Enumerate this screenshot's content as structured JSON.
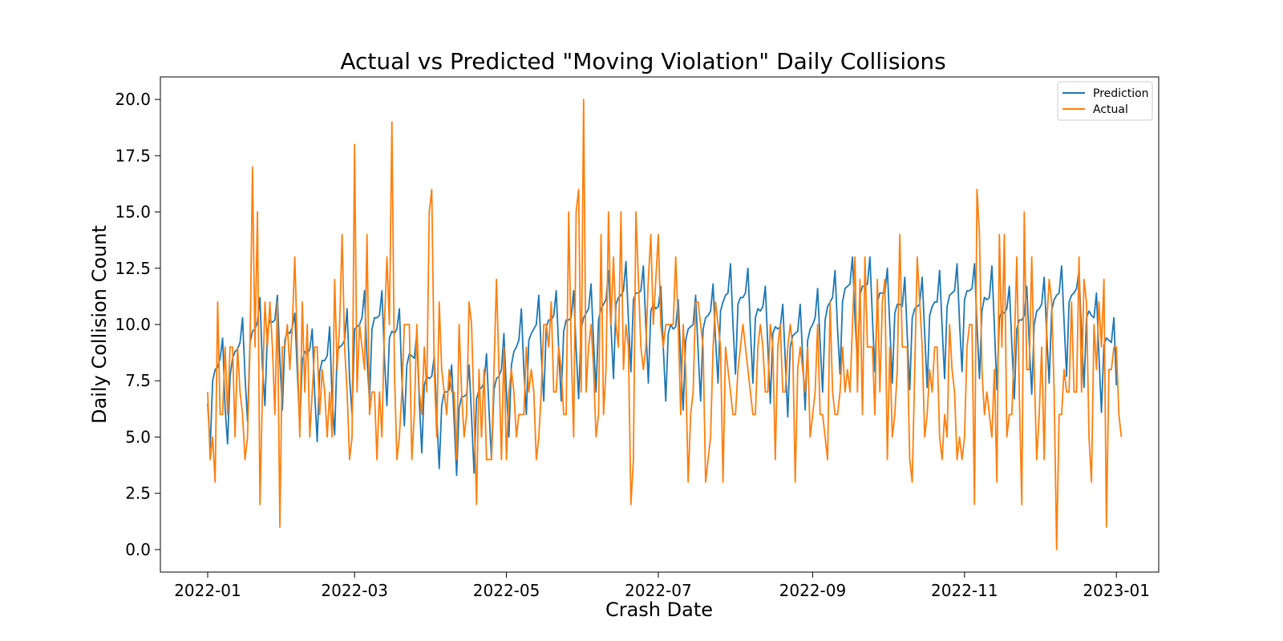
{
  "chart_data": {
    "type": "line",
    "title": "Actual vs Predicted \"Moving Violation\" Daily Collisions",
    "xlabel": "Crash Date",
    "ylabel": "Daily Collision Count",
    "x_start": "2022-01-01",
    "x_end": "2022-12-31",
    "xlim": [
      "2021-12-13",
      "2023-01-18"
    ],
    "ylim": [
      -1.0,
      21.0
    ],
    "x_ticks": [
      "2022-01",
      "2022-03",
      "2022-05",
      "2022-07",
      "2022-09",
      "2022-11",
      "2023-01"
    ],
    "y_ticks": [
      "0.0",
      "2.5",
      "5.0",
      "7.5",
      "10.0",
      "12.5",
      "15.0",
      "17.5",
      "20.0"
    ],
    "grid": false,
    "legend_position": "top-right",
    "series": [
      {
        "name": "Prediction",
        "color": "#1f77b4",
        "values": [
          6.5,
          4.5,
          7.5,
          8.0,
          8.1,
          8.5,
          9.4,
          6.3,
          4.7,
          7.7,
          8.5,
          8.8,
          8.9,
          9.2,
          10.3,
          7.7,
          5.7,
          9.2,
          9.7,
          9.8,
          10.1,
          11.2,
          8.1,
          6.4,
          9.7,
          10.2,
          10.1,
          10.2,
          11.3,
          8.4,
          6.2,
          9.3,
          9.7,
          9.6,
          9.9,
          10.5,
          7.9,
          5.5,
          8.4,
          8.8,
          8.7,
          8.9,
          9.8,
          6.9,
          4.8,
          7.9,
          8.4,
          8.4,
          8.6,
          9.9,
          6.6,
          5.1,
          8.8,
          9.0,
          9.1,
          9.3,
          10.7,
          7.6,
          6.0,
          9.8,
          9.9,
          10.0,
          10.3,
          11.5,
          8.5,
          6.6,
          9.8,
          10.3,
          10.3,
          10.4,
          11.5,
          8.5,
          6.4,
          9.4,
          9.7,
          9.6,
          9.8,
          10.7,
          7.6,
          5.5,
          8.2,
          8.7,
          8.6,
          8.5,
          9.6,
          6.6,
          4.3,
          7.3,
          7.7,
          7.6,
          7.7,
          8.6,
          6.0,
          3.6,
          6.4,
          7.0,
          7.0,
          7.1,
          8.2,
          5.7,
          3.3,
          6.3,
          6.8,
          6.8,
          6.9,
          8.2,
          5.9,
          3.4,
          6.7,
          7.1,
          7.2,
          7.4,
          8.7,
          6.2,
          4.0,
          7.1,
          7.6,
          7.7,
          8.0,
          9.6,
          7.0,
          5.0,
          8.2,
          8.8,
          9.0,
          9.3,
          10.7,
          8.0,
          6.0,
          9.3,
          9.6,
          9.8,
          10.0,
          11.3,
          8.7,
          6.6,
          9.9,
          10.2,
          10.2,
          10.4,
          11.5,
          8.9,
          6.6,
          9.7,
          10.2,
          10.2,
          10.3,
          11.5,
          8.9,
          6.7,
          9.8,
          10.3,
          10.5,
          10.7,
          11.8,
          9.2,
          7.0,
          10.2,
          10.7,
          10.9,
          11.1,
          12.4,
          9.9,
          7.6,
          10.9,
          11.2,
          11.3,
          11.5,
          12.8,
          10.2,
          7.9,
          11.1,
          11.4,
          11.4,
          11.5,
          12.6,
          9.9,
          7.4,
          10.6,
          10.9,
          10.7,
          10.8,
          11.7,
          9.0,
          6.6,
          9.6,
          10.0,
          9.8,
          9.9,
          11.1,
          8.5,
          6.2,
          9.3,
          9.8,
          9.9,
          10.0,
          11.3,
          8.8,
          6.6,
          9.8,
          10.3,
          10.4,
          10.6,
          11.8,
          9.3,
          7.4,
          10.6,
          11.0,
          11.3,
          11.4,
          12.7,
          10.0,
          7.8,
          10.9,
          11.2,
          11.2,
          11.4,
          12.5,
          9.8,
          7.4,
          10.3,
          10.7,
          10.6,
          10.8,
          11.7,
          9.0,
          6.5,
          9.6,
          9.9,
          9.8,
          9.9,
          10.9,
          8.4,
          5.9,
          9.0,
          9.5,
          9.6,
          9.7,
          10.9,
          8.5,
          6.2,
          9.3,
          9.8,
          10.0,
          10.3,
          11.6,
          9.2,
          7.0,
          10.2,
          10.8,
          11.0,
          11.2,
          12.4,
          9.8,
          7.8,
          11.0,
          11.6,
          11.7,
          11.8,
          13.0,
          10.3,
          8.2,
          11.3,
          11.7,
          11.7,
          11.8,
          13.0,
          10.3,
          7.9,
          11.0,
          11.4,
          11.4,
          11.4,
          12.5,
          9.9,
          7.4,
          10.5,
          10.9,
          10.9,
          10.8,
          12.1,
          9.5,
          7.1,
          10.3,
          10.7,
          10.8,
          10.9,
          12.1,
          9.6,
          7.2,
          10.4,
          10.8,
          11.0,
          11.0,
          12.4,
          9.9,
          7.6,
          10.8,
          11.3,
          11.4,
          11.5,
          12.7,
          10.1,
          7.9,
          11.1,
          11.5,
          11.5,
          11.6,
          12.7,
          10.0,
          7.6,
          10.6,
          11.2,
          11.1,
          11.2,
          12.6,
          9.9,
          7.1,
          10.3,
          10.6,
          10.5,
          10.7,
          11.7,
          9.1,
          6.7,
          9.8,
          10.2,
          10.2,
          10.4,
          11.7,
          9.2,
          6.9,
          10.0,
          10.6,
          10.7,
          10.9,
          12.1,
          9.6,
          7.4,
          10.6,
          11.1,
          11.3,
          11.4,
          12.6,
          10.1,
          7.7,
          11.0,
          11.3,
          11.4,
          11.6,
          12.4,
          9.6,
          7.2,
          10.3,
          10.6,
          10.4,
          10.3,
          11.4,
          8.6,
          6.1,
          9.1,
          9.4,
          9.3,
          9.2,
          10.3,
          7.3
        ]
      },
      {
        "name": "Actual",
        "color": "#ff7f0e",
        "values": [
          7,
          4,
          5,
          3,
          11,
          6,
          6,
          9,
          6,
          9,
          9,
          5,
          9,
          7,
          6,
          4,
          5,
          9,
          17,
          9,
          15,
          2,
          7,
          11,
          9,
          11,
          9,
          6,
          11,
          1,
          9,
          9,
          10,
          8,
          10,
          13,
          9,
          5,
          11,
          7,
          10,
          5,
          7,
          9,
          9,
          6,
          8,
          7,
          5,
          7,
          5,
          12,
          8,
          10,
          14,
          9,
          7,
          4,
          5,
          18,
          7,
          10,
          9,
          8,
          14,
          6,
          7,
          7,
          4,
          7,
          5,
          10,
          13,
          10,
          19,
          8,
          4,
          5,
          7,
          10,
          10,
          10,
          4,
          6,
          10,
          7,
          6,
          9,
          7,
          15,
          16,
          8,
          5,
          11,
          8,
          7,
          6,
          8,
          7,
          7,
          4,
          10,
          7,
          5,
          6,
          11,
          10,
          6,
          2,
          8,
          5,
          8,
          4,
          4,
          4,
          8,
          12,
          8,
          4,
          9,
          4,
          7,
          8,
          7,
          5,
          6,
          6,
          6,
          9,
          7,
          8,
          7,
          4,
          5,
          7,
          10,
          10,
          9,
          11,
          7,
          7,
          9,
          8,
          6,
          6,
          15,
          9,
          5,
          15,
          16,
          7,
          20,
          7,
          9,
          10,
          8,
          5,
          6,
          14,
          6,
          8,
          15,
          10,
          13,
          10,
          9,
          15,
          8,
          10,
          9,
          2,
          4,
          15,
          12,
          9,
          8,
          9,
          12,
          14,
          10,
          12,
          14,
          10,
          9,
          10,
          10,
          10,
          10,
          13,
          10,
          6,
          10,
          8,
          3,
          6,
          7,
          11,
          11,
          10,
          9,
          3,
          4,
          5,
          9,
          11,
          10,
          9,
          3,
          9,
          8,
          7,
          6,
          6,
          8,
          9,
          10,
          9,
          8,
          7,
          6,
          6,
          9,
          10,
          9,
          7,
          7,
          10,
          9,
          4,
          9,
          10,
          7,
          7,
          9,
          10,
          9,
          3,
          8,
          9,
          8,
          7,
          9,
          5,
          6,
          7,
          10,
          6,
          6,
          5,
          4,
          11,
          7,
          6,
          6,
          7,
          9,
          7,
          8,
          7,
          10,
          13,
          7,
          12,
          6,
          13,
          9,
          9,
          9,
          6,
          12,
          7,
          11,
          12,
          4,
          9,
          5,
          6,
          8,
          14,
          9,
          9,
          9,
          4,
          3,
          8,
          13,
          11,
          9,
          5,
          6,
          8,
          7,
          9,
          9,
          5,
          4,
          6,
          5,
          10,
          8,
          7,
          4,
          5,
          4,
          5,
          9,
          10,
          10,
          2,
          16,
          14,
          8,
          6,
          7,
          6,
          5,
          8,
          3,
          14,
          9,
          14,
          5,
          6,
          6,
          9,
          13,
          7,
          2,
          15,
          8,
          8,
          13,
          8,
          4,
          6,
          9,
          4,
          10,
          12,
          11,
          7,
          0,
          6,
          6,
          8,
          7,
          7,
          11,
          7,
          7,
          13,
          7,
          12,
          11,
          5,
          3,
          10,
          8,
          11,
          9,
          12,
          1,
          8,
          8,
          9,
          9,
          6,
          5
        ]
      }
    ]
  }
}
